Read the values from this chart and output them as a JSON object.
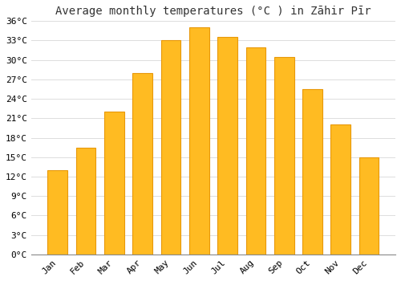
{
  "title": "Average monthly temperatures (°C ) in Zāhir Pīr",
  "months": [
    "Jan",
    "Feb",
    "Mar",
    "Apr",
    "May",
    "Jun",
    "Jul",
    "Aug",
    "Sep",
    "Oct",
    "Nov",
    "Dec"
  ],
  "values": [
    13,
    16.5,
    22,
    28,
    33,
    35,
    33.5,
    32,
    30.5,
    25.5,
    20,
    15
  ],
  "bar_color": "#FFBB22",
  "bar_edge_color": "#E8980A",
  "background_color": "#FFFFFF",
  "grid_color": "#DDDDDD",
  "ylim": [
    0,
    36
  ],
  "yticks": [
    0,
    3,
    6,
    9,
    12,
    15,
    18,
    21,
    24,
    27,
    30,
    33,
    36
  ],
  "ylabel_suffix": "°C",
  "title_fontsize": 10,
  "tick_fontsize": 8
}
